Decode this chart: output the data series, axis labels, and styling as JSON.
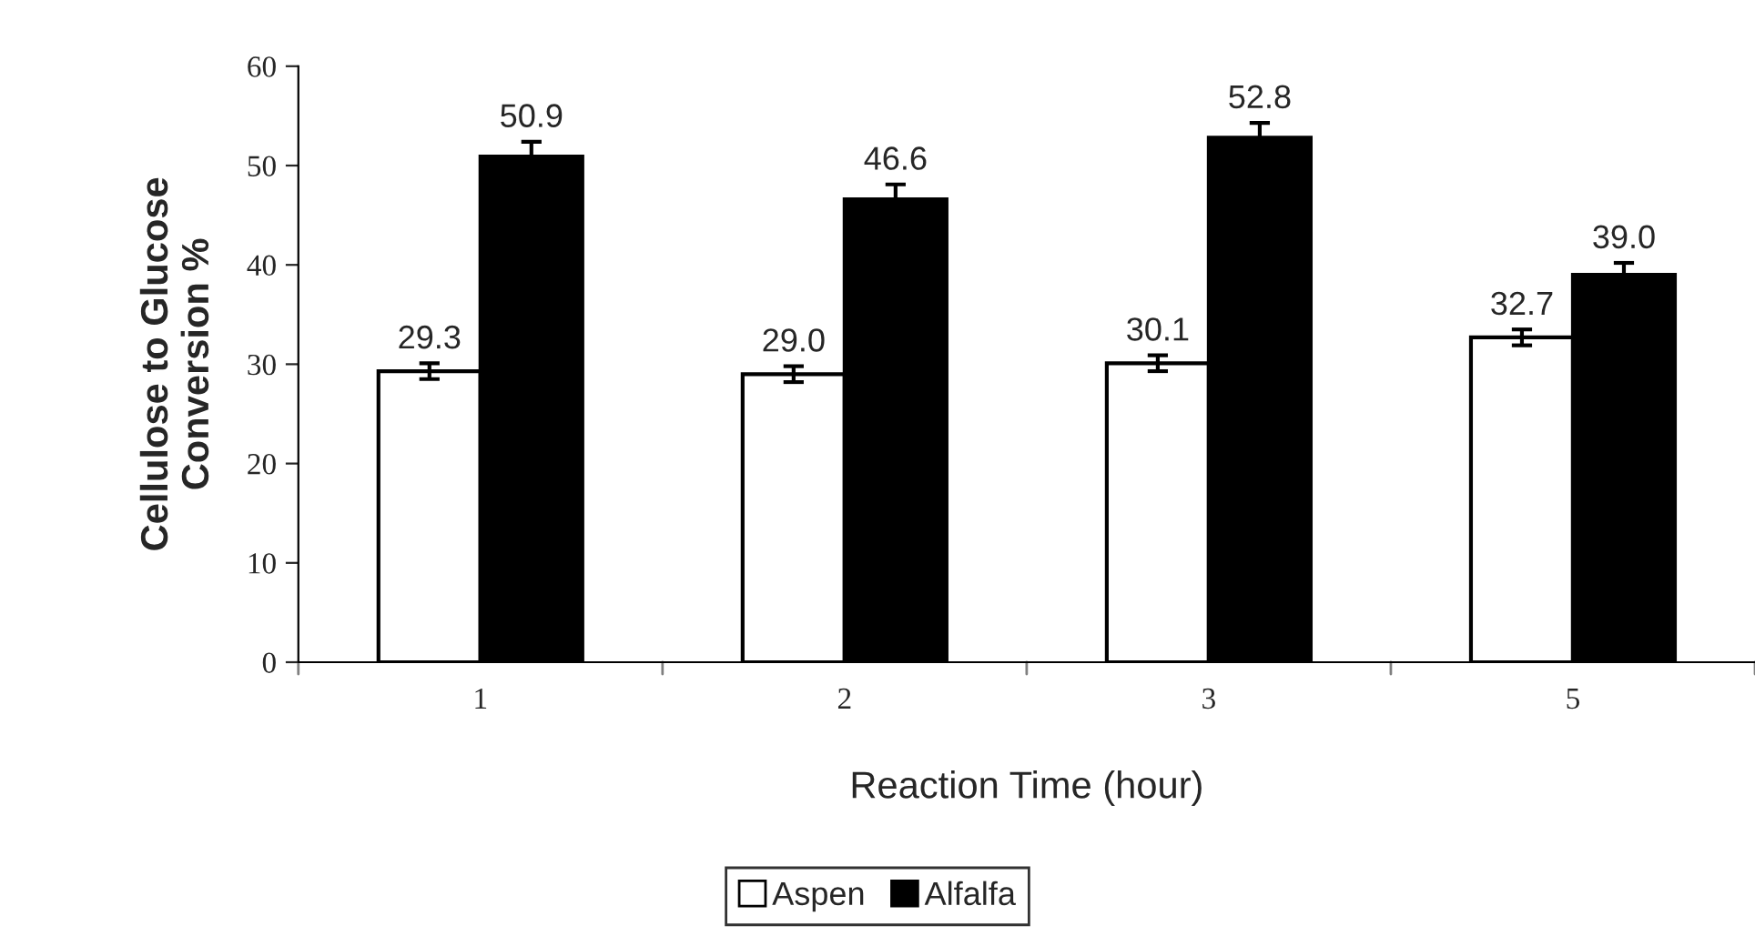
{
  "chart_data": {
    "type": "bar",
    "xlabel": "Reaction Time (hour)",
    "ylabel": "Cellulose to Glucose\nConversion %",
    "categories": [
      "1",
      "2",
      "3",
      "5"
    ],
    "series": [
      {
        "name": "Aspen",
        "color": "#ffffff",
        "values": [
          29.3,
          29.0,
          30.1,
          32.7
        ],
        "errors": [
          0.8,
          0.8,
          0.8,
          0.8
        ],
        "value_labels": [
          "29.3",
          "29.0",
          "30.1",
          "32.7"
        ]
      },
      {
        "name": "Alfalfa",
        "color": "#000000",
        "values": [
          50.9,
          46.6,
          52.8,
          39.0
        ],
        "errors": [
          1.5,
          1.5,
          1.5,
          1.2
        ],
        "value_labels": [
          "50.9",
          "46.6",
          "52.8",
          "39.0"
        ]
      }
    ],
    "ylim": [
      0,
      60
    ],
    "yticks": [
      0,
      10,
      20,
      30,
      40,
      50,
      60
    ],
    "legend": "bottom"
  }
}
